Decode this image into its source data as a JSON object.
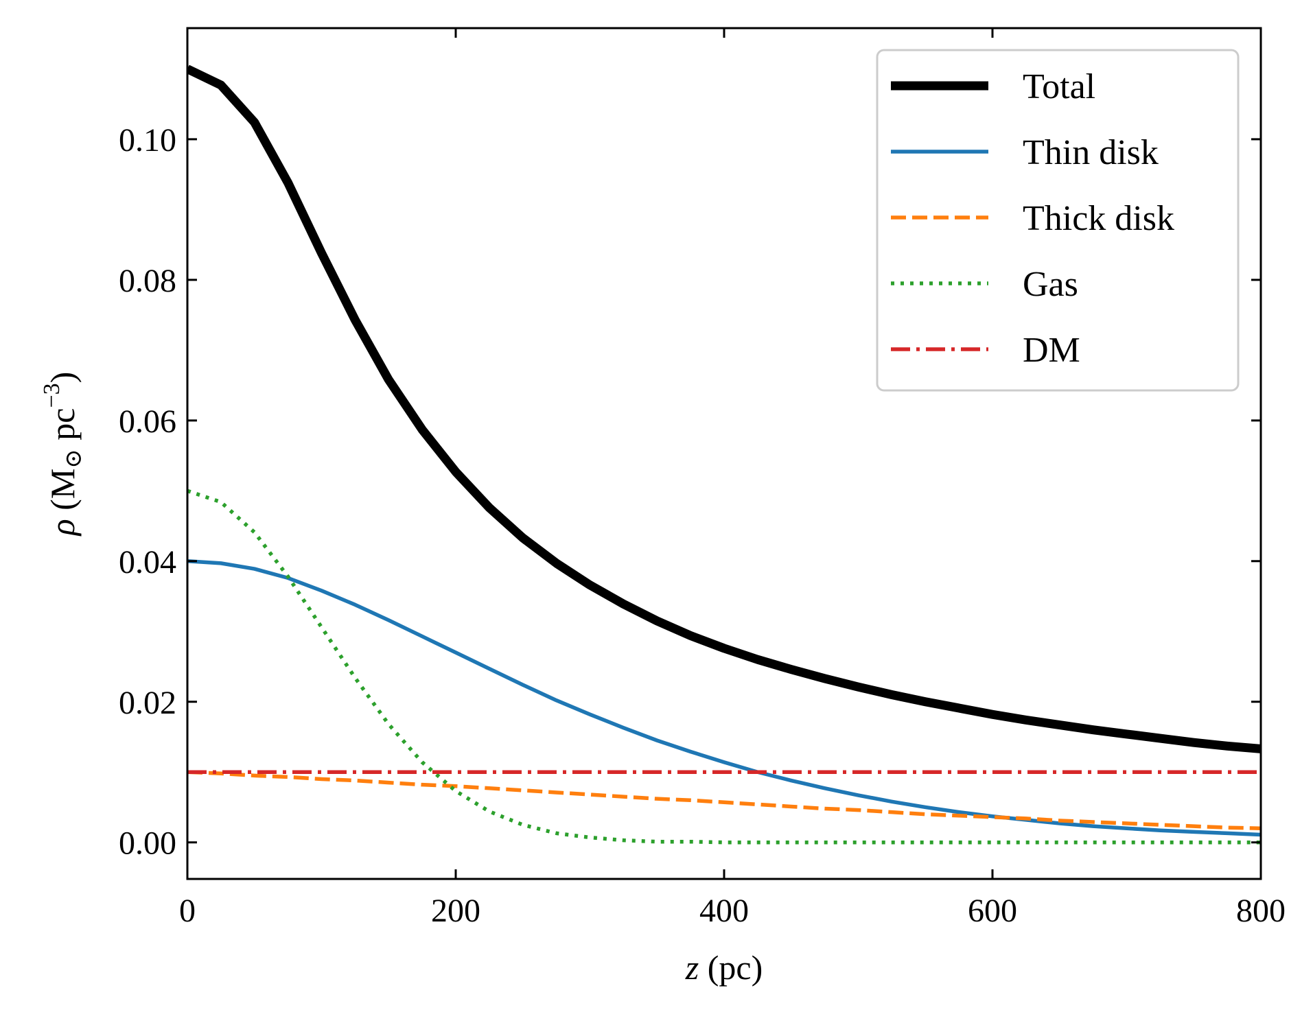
{
  "chart_data": {
    "type": "line",
    "title": "",
    "xlabel": "z (pc)",
    "ylabel": "ρ (M⊙ pc−3)",
    "xlabel_parts": {
      "var": "z",
      "unit": " (pc)"
    },
    "ylabel_parts": {
      "var": "ρ",
      "open": " (M",
      "sub": "⊙",
      "mid": " pc",
      "sup": "−3",
      "close": ")"
    },
    "xlim": [
      0,
      800
    ],
    "ylim": [
      -0.0052,
      0.1158
    ],
    "x_ticks": [
      0,
      200,
      400,
      600,
      800
    ],
    "x_tick_labels": [
      "0",
      "200",
      "400",
      "600",
      "800"
    ],
    "y_ticks": [
      0,
      0.02,
      0.04,
      0.06,
      0.08,
      0.1
    ],
    "y_tick_labels": [
      "0.00",
      "0.02",
      "0.04",
      "0.06",
      "0.08",
      "0.10"
    ],
    "grid": false,
    "legend_position": "top-right",
    "x": [
      0,
      25,
      50,
      75,
      100,
      125,
      150,
      175,
      200,
      225,
      250,
      275,
      300,
      325,
      350,
      375,
      400,
      425,
      450,
      475,
      500,
      525,
      550,
      575,
      600,
      625,
      650,
      675,
      700,
      725,
      750,
      775,
      800
    ],
    "series": [
      {
        "name": "Total",
        "color": "#000000",
        "style": "solid",
        "values": [
          0.11,
          0.1077,
          0.1024,
          0.0938,
          0.0838,
          0.0743,
          0.0658,
          0.0587,
          0.0527,
          0.0476,
          0.0433,
          0.0397,
          0.0366,
          0.0339,
          0.0315,
          0.0294,
          0.0276,
          0.026,
          0.0246,
          0.0233,
          0.0221,
          0.021,
          0.02,
          0.0191,
          0.0182,
          0.0174,
          0.0167,
          0.016,
          0.0154,
          0.0148,
          0.0142,
          0.0137,
          0.0133
        ]
      },
      {
        "name": "Thin disk",
        "color": "#1f77b4",
        "style": "solid",
        "values": [
          0.04,
          0.0397,
          0.0389,
          0.0376,
          0.0358,
          0.0338,
          0.0316,
          0.0293,
          0.027,
          0.0247,
          0.0224,
          0.0202,
          0.0182,
          0.0163,
          0.0145,
          0.0129,
          0.0114,
          0.01,
          0.0088,
          0.0077,
          0.0067,
          0.0058,
          0.005,
          0.0043,
          0.0037,
          0.0032,
          0.0027,
          0.0023,
          0.002,
          0.0017,
          0.0015,
          0.0013,
          0.0011
        ]
      },
      {
        "name": "Thick disk",
        "color": "#ff7f0e",
        "style": "dashed",
        "values": [
          0.01,
          0.0098,
          0.0095,
          0.0093,
          0.009,
          0.0088,
          0.0085,
          0.0082,
          0.008,
          0.0077,
          0.0074,
          0.0071,
          0.0068,
          0.0065,
          0.0062,
          0.006,
          0.0057,
          0.0054,
          0.0051,
          0.0048,
          0.0046,
          0.0043,
          0.004,
          0.0038,
          0.0036,
          0.0034,
          0.0031,
          0.0029,
          0.0027,
          0.0025,
          0.0023,
          0.0021,
          0.002
        ]
      },
      {
        "name": "Gas",
        "color": "#2ca02c",
        "style": "dotted",
        "values": [
          0.05,
          0.0484,
          0.0441,
          0.0378,
          0.0306,
          0.0234,
          0.0168,
          0.0114,
          0.0073,
          0.0044,
          0.0025,
          0.0013,
          0.0007,
          0.0003,
          0.0001,
          0.0001,
          0.0,
          0.0,
          0.0,
          0.0,
          0.0,
          0.0,
          0.0,
          0.0,
          0.0,
          0.0,
          0.0,
          0.0,
          0.0,
          0.0,
          0.0,
          0.0,
          0.0
        ]
      },
      {
        "name": "DM",
        "color": "#d62728",
        "style": "dashdot",
        "values": [
          0.01,
          0.01,
          0.01,
          0.01,
          0.01,
          0.01,
          0.01,
          0.01,
          0.01,
          0.01,
          0.01,
          0.01,
          0.01,
          0.01,
          0.01,
          0.01,
          0.01,
          0.01,
          0.01,
          0.01,
          0.01,
          0.01,
          0.01,
          0.01,
          0.01,
          0.01,
          0.01,
          0.01,
          0.01,
          0.01,
          0.01,
          0.01,
          0.01
        ]
      }
    ]
  }
}
